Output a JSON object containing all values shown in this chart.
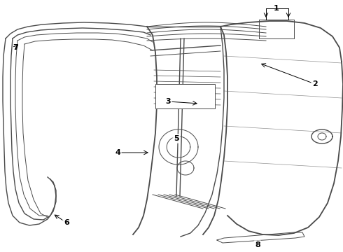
{
  "background_color": "#ffffff",
  "line_color": "#4a4a4a",
  "label_color": "#000000",
  "figsize": [
    4.9,
    3.6
  ],
  "dpi": 100
}
